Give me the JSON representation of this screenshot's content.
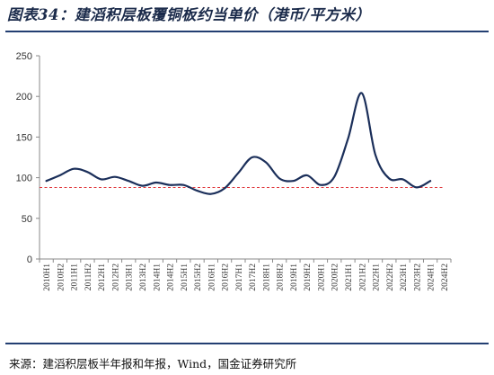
{
  "title": "图表34：建滔积层板覆铜板约当单价（港币/平方米）",
  "source": "来源：建滔积层板半年报和年报，Wind，国金证券研究所",
  "chart_data": {
    "type": "line",
    "title": "图表34：建滔积层板覆铜板约当单价（港币/平方米）",
    "xlabel": "",
    "ylabel": "",
    "ylim": [
      0,
      250
    ],
    "yticks": [
      0,
      50,
      100,
      150,
      200,
      250
    ],
    "grid": false,
    "categories": [
      "2010H1",
      "2010H2",
      "2011H1",
      "2011H2",
      "2012H1",
      "2012H2",
      "2013H1",
      "2013H2",
      "2014H1",
      "2014H2",
      "2015H1",
      "2015H2",
      "2016H1",
      "2016H2",
      "2017H1",
      "2017H2",
      "2018H1",
      "2018H2",
      "2019H1",
      "2019H2",
      "2020H1",
      "2020H2",
      "2021H1",
      "2021H2",
      "2022H1",
      "2022H2",
      "2023H1",
      "2023H2",
      "2024H1",
      "2024H2"
    ],
    "series": [
      {
        "color": "#1b2f5a",
        "values": [
          96,
          103,
          111,
          107,
          98,
          101,
          96,
          90,
          94,
          91,
          91,
          84,
          80,
          87,
          106,
          125,
          119,
          99,
          96,
          103,
          91,
          101,
          148,
          204,
          128,
          99,
          98,
          88,
          96,
          null
        ]
      }
    ],
    "reference_line": {
      "y": 88,
      "color": "#e0393e",
      "style": "dashed"
    }
  }
}
